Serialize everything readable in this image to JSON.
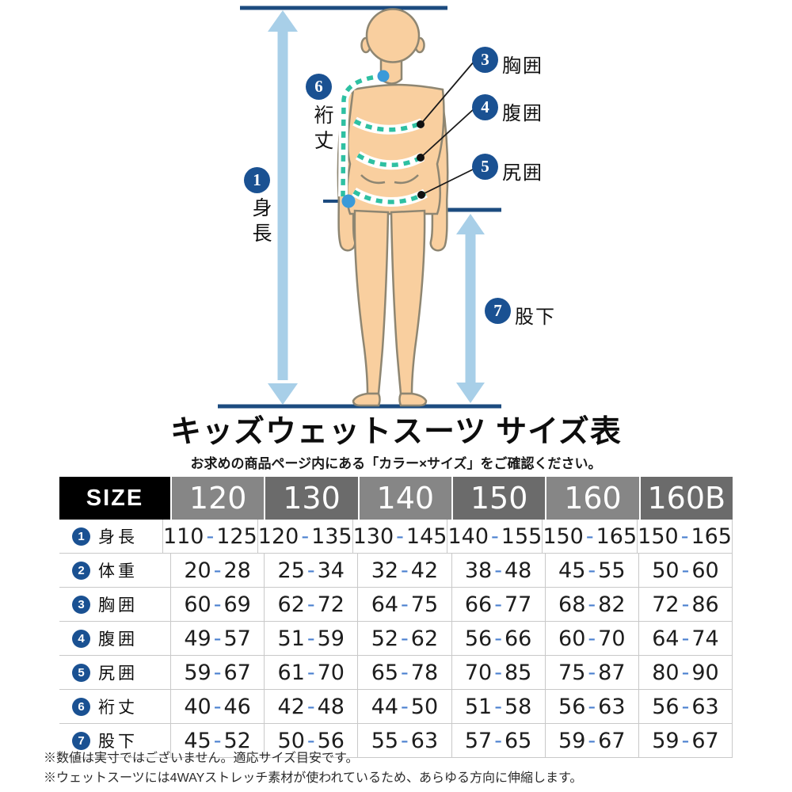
{
  "diagram": {
    "annotations": [
      {
        "num": "1",
        "label": "身長"
      },
      {
        "num": "3",
        "label": "胸囲"
      },
      {
        "num": "4",
        "label": "腹囲"
      },
      {
        "num": "5",
        "label": "尻囲"
      },
      {
        "num": "6",
        "label": "裄丈"
      },
      {
        "num": "7",
        "label": "股下"
      }
    ],
    "colors": {
      "navy_line": "#1c4b7f",
      "badge_blue": "#1a5192",
      "arrow_light_blue": "#a8cfe8",
      "measure_teal": "#2ec0a2",
      "marker_blue": "#3a9ad9",
      "skin": "#f9cf9f",
      "skin_outline": "#8e8672"
    }
  },
  "title": "キッズウェットスーツ サイズ表",
  "subtitle": "お求めの商品ページ内にある「カラー×サイズ」をご確認ください。",
  "table": {
    "size_label": "SIZE",
    "separator": "-",
    "columns": [
      "120",
      "130",
      "140",
      "150",
      "160",
      "160B"
    ],
    "rows": [
      {
        "num": "1",
        "label": "身長",
        "values": [
          [
            "110",
            "125"
          ],
          [
            "120",
            "135"
          ],
          [
            "130",
            "145"
          ],
          [
            "140",
            "155"
          ],
          [
            "150",
            "165"
          ],
          [
            "150",
            "165"
          ]
        ]
      },
      {
        "num": "2",
        "label": "体重",
        "values": [
          [
            "20",
            "28"
          ],
          [
            "25",
            "34"
          ],
          [
            "32",
            "42"
          ],
          [
            "38",
            "48"
          ],
          [
            "45",
            "55"
          ],
          [
            "50",
            "60"
          ]
        ]
      },
      {
        "num": "3",
        "label": "胸囲",
        "values": [
          [
            "60",
            "69"
          ],
          [
            "62",
            "72"
          ],
          [
            "64",
            "75"
          ],
          [
            "66",
            "77"
          ],
          [
            "68",
            "82"
          ],
          [
            "72",
            "86"
          ]
        ]
      },
      {
        "num": "4",
        "label": "腹囲",
        "values": [
          [
            "49",
            "57"
          ],
          [
            "51",
            "59"
          ],
          [
            "52",
            "62"
          ],
          [
            "56",
            "66"
          ],
          [
            "60",
            "70"
          ],
          [
            "64",
            "74"
          ]
        ]
      },
      {
        "num": "5",
        "label": "尻囲",
        "values": [
          [
            "59",
            "67"
          ],
          [
            "61",
            "70"
          ],
          [
            "65",
            "78"
          ],
          [
            "70",
            "85"
          ],
          [
            "75",
            "87"
          ],
          [
            "80",
            "90"
          ]
        ]
      },
      {
        "num": "6",
        "label": "裄丈",
        "values": [
          [
            "40",
            "46"
          ],
          [
            "42",
            "48"
          ],
          [
            "44",
            "50"
          ],
          [
            "51",
            "58"
          ],
          [
            "56",
            "63"
          ],
          [
            "56",
            "63"
          ]
        ]
      },
      {
        "num": "7",
        "label": "股下",
        "values": [
          [
            "45",
            "52"
          ],
          [
            "50",
            "56"
          ],
          [
            "55",
            "63"
          ],
          [
            "57",
            "65"
          ],
          [
            "59",
            "67"
          ],
          [
            "59",
            "67"
          ]
        ]
      }
    ]
  },
  "notes": [
    "※数値は実寸ではございません。適応サイズ目安です。",
    "※ウェットスーツには4WAYストレッチ素材が使われているため、あらゆる方向に伸縮します。"
  ]
}
